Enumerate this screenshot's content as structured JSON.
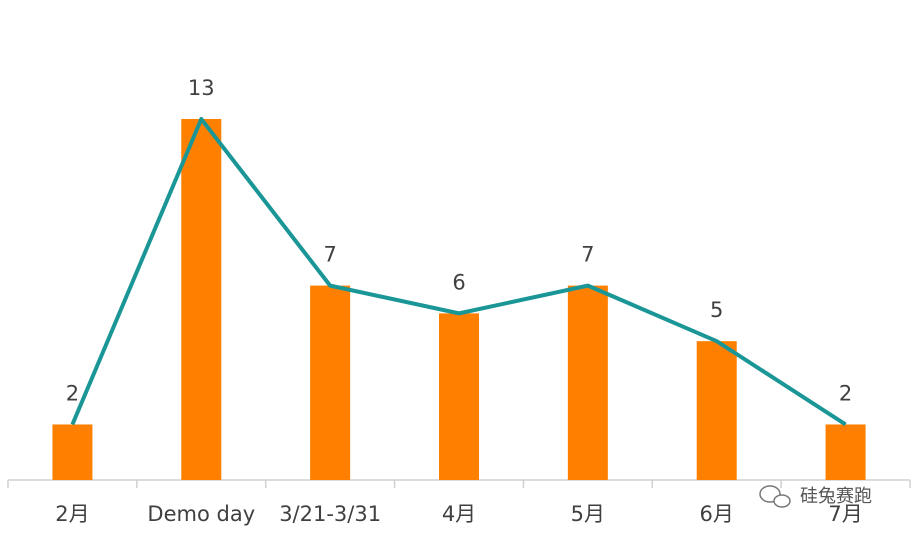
{
  "chart_data": {
    "type": "bar",
    "categories": [
      "2月",
      "Demo day",
      "3/21-3/31",
      "4月",
      "5月",
      "6月",
      "7月"
    ],
    "values": [
      2,
      13,
      7,
      6,
      7,
      5,
      2
    ],
    "color": "#ff8000",
    "line_color": "#1a9696"
  },
  "watermark": "硅兔赛跑"
}
